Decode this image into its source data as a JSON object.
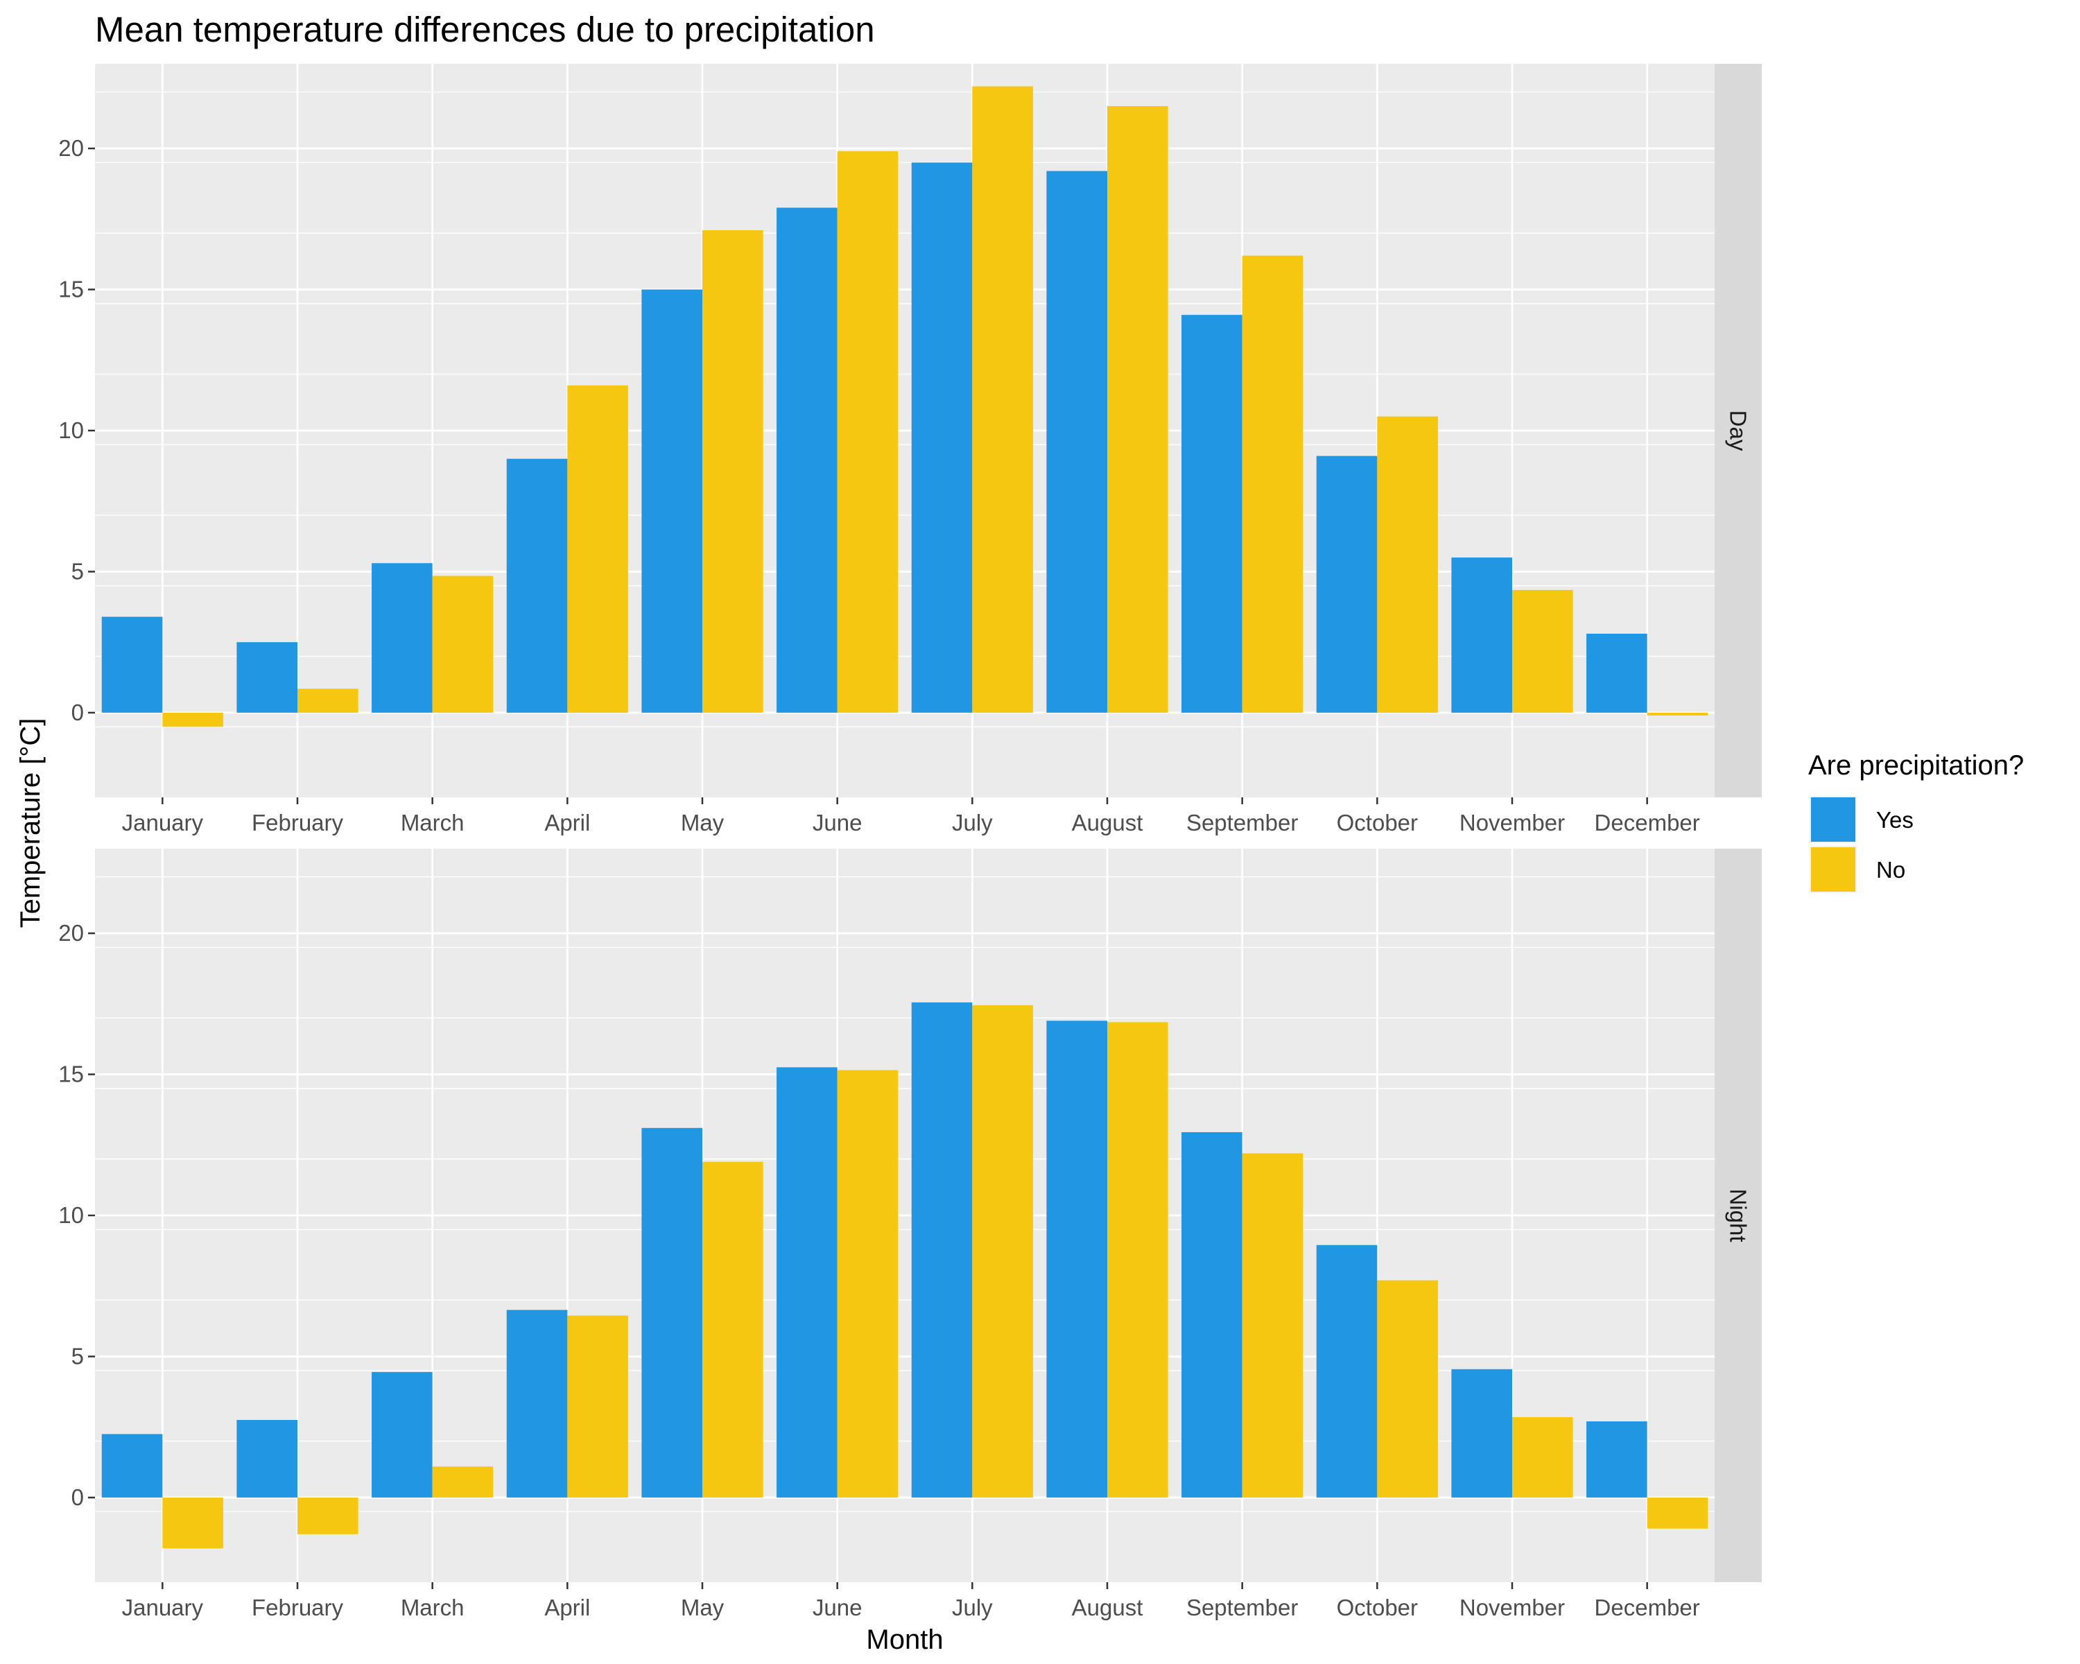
{
  "chart_data": {
    "type": "bar",
    "title": "Mean temperature differences due to precipitation",
    "xlabel": "Month",
    "ylabel": "Temperature [°C]",
    "ylim": [
      -3,
      23
    ],
    "yticks": [
      0,
      5,
      10,
      15,
      20
    ],
    "grid": true,
    "legend": {
      "title": "Are precipitation?",
      "placement": "right",
      "entries": [
        {
          "label": "Yes",
          "color": "#2196E3"
        },
        {
          "label": "No",
          "color": "#F5C710"
        }
      ]
    },
    "categories": [
      "January",
      "February",
      "March",
      "April",
      "May",
      "June",
      "July",
      "August",
      "September",
      "October",
      "November",
      "December"
    ],
    "facets": [
      {
        "label": "Day",
        "series": [
          {
            "name": "Yes",
            "color": "#2196E3",
            "values": [
              3.4,
              2.5,
              5.3,
              9.0,
              15.0,
              17.9,
              19.5,
              19.2,
              14.1,
              9.1,
              5.5,
              2.8
            ]
          },
          {
            "name": "No",
            "color": "#F5C710",
            "values": [
              -0.5,
              0.85,
              4.85,
              11.6,
              17.1,
              19.9,
              22.2,
              21.5,
              16.2,
              10.5,
              4.35,
              -0.1
            ]
          }
        ]
      },
      {
        "label": "Night",
        "series": [
          {
            "name": "Yes",
            "color": "#2196E3",
            "values": [
              2.25,
              2.75,
              4.45,
              6.65,
              13.1,
              15.25,
              17.55,
              16.9,
              12.95,
              8.95,
              4.55,
              2.7
            ]
          },
          {
            "name": "No",
            "color": "#F5C710",
            "values": [
              -1.8,
              -1.3,
              1.1,
              6.45,
              11.9,
              15.15,
              17.45,
              16.85,
              12.2,
              7.7,
              2.85,
              -1.1
            ]
          }
        ]
      }
    ]
  }
}
